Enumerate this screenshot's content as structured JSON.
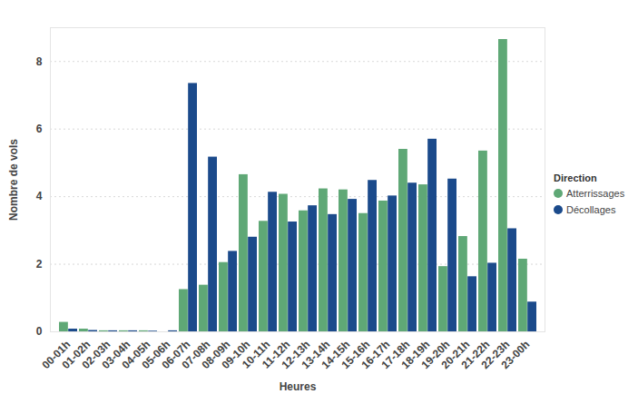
{
  "chart_data": {
    "type": "bar",
    "x_label": "Heures",
    "y_label": "Nombre de vols",
    "categories": [
      "00-01h",
      "01-02h",
      "02-03h",
      "03-04h",
      "04-05h",
      "05-06h",
      "06-07h",
      "07-08h",
      "08-09h",
      "09-10h",
      "10-11h",
      "11-12h",
      "12-13h",
      "13-14h",
      "14-15h",
      "15-16h",
      "16-17h",
      "17-18h",
      "18-19h",
      "19-20h",
      "20-21h",
      "21-22h",
      "22-23h",
      "23-00h"
    ],
    "series": [
      {
        "name": "Atterrissages",
        "color": "#5fa876",
        "values": [
          0.28,
          0.08,
          0.03,
          0.03,
          0.03,
          0.0,
          1.25,
          1.38,
          2.05,
          4.65,
          3.27,
          4.07,
          3.58,
          4.23,
          4.2,
          3.5,
          3.87,
          5.4,
          4.35,
          1.93,
          2.82,
          5.35,
          8.65,
          2.15
        ]
      },
      {
        "name": "Décollages",
        "color": "#1b4a8b",
        "values": [
          0.08,
          0.04,
          0.03,
          0.03,
          0.02,
          0.03,
          7.35,
          5.17,
          2.38,
          2.8,
          4.13,
          3.25,
          3.73,
          3.47,
          3.92,
          4.48,
          4.02,
          4.4,
          5.7,
          4.52,
          1.63,
          2.03,
          3.05,
          0.88
        ]
      }
    ],
    "ylim": [
      0,
      9
    ],
    "yticks": [
      0,
      2,
      4,
      6,
      8
    ],
    "grid": true,
    "legend": "right",
    "legend_title": "Direction"
  }
}
